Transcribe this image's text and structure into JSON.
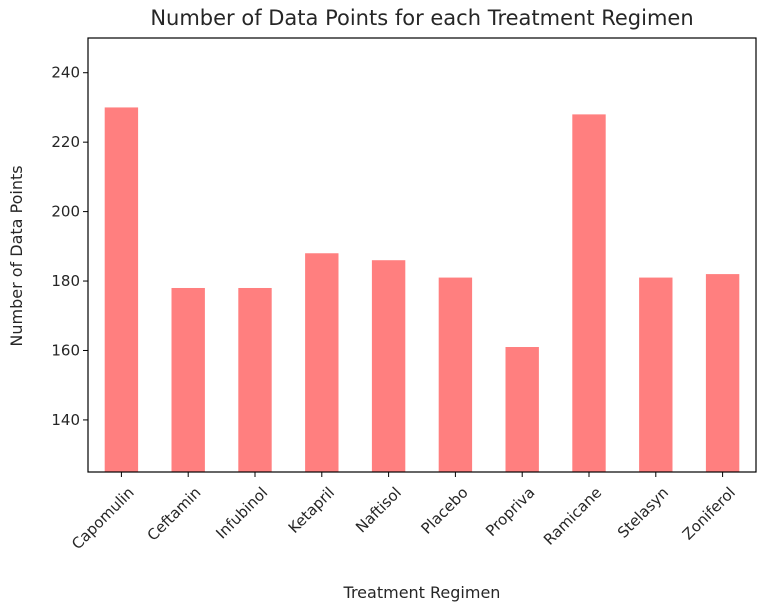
{
  "chart_data": {
    "type": "bar",
    "title": "Number of Data Points for each Treatment Regimen",
    "xlabel": "Treatment Regimen",
    "ylabel": "Number of Data Points",
    "categories": [
      "Capomulin",
      "Ceftamin",
      "Infubinol",
      "Ketapril",
      "Naftisol",
      "Placebo",
      "Propriva",
      "Ramicane",
      "Stelasyn",
      "Zoniferol"
    ],
    "values": [
      230,
      178,
      178,
      188,
      186,
      181,
      161,
      228,
      181,
      182
    ],
    "ylim": [
      125,
      250
    ],
    "yticks": [
      140,
      160,
      180,
      200,
      220,
      240
    ],
    "bar_color": "#ff7f7f",
    "grid": false,
    "legend": "none"
  }
}
